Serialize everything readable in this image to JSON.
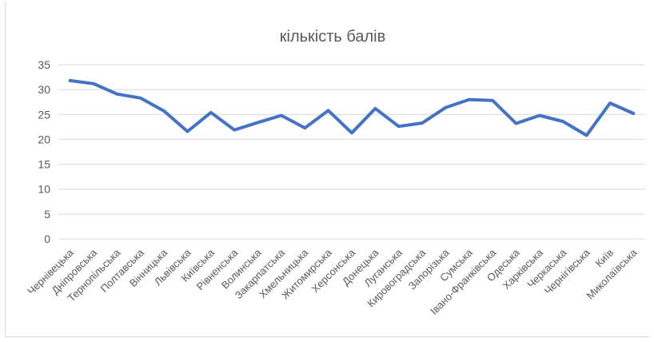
{
  "chart_data": {
    "type": "line",
    "title": "кількість балів",
    "xlabel": "",
    "ylabel": "",
    "ylim": [
      0,
      35
    ],
    "yticks": [
      0,
      5,
      10,
      15,
      20,
      25,
      30,
      35
    ],
    "grid": true,
    "legend": "none",
    "categories": [
      "Чернівецька",
      "Дніпровська",
      "Тернопільська",
      "Полтавська",
      "Вінницька",
      "Львівська",
      "Київська",
      "Рівненська",
      "Волинська",
      "Закарпатська",
      "Хмельницька",
      "Житомирська",
      "Херсонська",
      "Донецька",
      "Луганська",
      "Кировоградська",
      "Запорізька",
      "Сумська",
      "Івано-Франківська",
      "Одеська",
      "Харківська",
      "Черкаська",
      "Чернігівська",
      "Київ",
      "Миколаївська"
    ],
    "series": [
      {
        "color": "#4472c4",
        "values": [
          31.8,
          31.2,
          29.1,
          28.3,
          25.7,
          21.6,
          25.4,
          21.9,
          23.4,
          24.8,
          22.3,
          25.8,
          21.3,
          26.2,
          22.6,
          23.3,
          26.4,
          28.0,
          27.8,
          23.2,
          24.8,
          23.6,
          20.8,
          27.3,
          25.2
        ]
      }
    ]
  }
}
